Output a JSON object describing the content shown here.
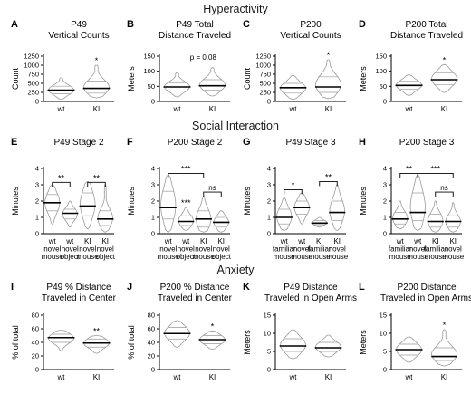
{
  "sections": [
    "Hyperactivity",
    "Social Interaction",
    "Anxiety"
  ],
  "chart_data": [
    {
      "letter": "A",
      "type": "violin",
      "title": [
        "P49",
        "Vertical Counts"
      ],
      "ylabel": "Count",
      "ylim": [
        0,
        1250
      ],
      "yticks": [
        0,
        250,
        500,
        750,
        1000,
        1250
      ],
      "categories": [
        [
          "wt"
        ],
        [
          "KI"
        ]
      ],
      "series": [
        {
          "name": "wt",
          "median": 310,
          "min": 60,
          "max": 650,
          "q1": 210,
          "q3": 420
        },
        {
          "name": "KI",
          "median": 360,
          "min": 100,
          "max": 1000,
          "q1": 230,
          "q3": 560
        }
      ],
      "annotations": [
        {
          "type": "star",
          "group": 1,
          "label": "*"
        }
      ]
    },
    {
      "letter": "B",
      "type": "violin",
      "title": [
        "P49 Total",
        "Distance Traveled"
      ],
      "ylabel": "Meters",
      "ylim": [
        0,
        150
      ],
      "yticks": [
        0,
        50,
        100,
        150
      ],
      "categories": [
        [
          "wt"
        ],
        [
          "KI"
        ]
      ],
      "series": [
        {
          "name": "wt",
          "median": 48,
          "min": 15,
          "max": 95,
          "q1": 35,
          "q3": 62
        },
        {
          "name": "KI",
          "median": 52,
          "min": 18,
          "max": 112,
          "q1": 38,
          "q3": 72
        }
      ],
      "annotations": [
        {
          "type": "text",
          "label": "p = 0.08"
        }
      ]
    },
    {
      "letter": "C",
      "type": "violin",
      "title": [
        "P200",
        "Vertical Counts"
      ],
      "ylabel": "Count",
      "ylim": [
        0,
        1250
      ],
      "yticks": [
        0,
        250,
        500,
        750,
        1000,
        1250
      ],
      "categories": [
        [
          "wt"
        ],
        [
          "KI"
        ]
      ],
      "series": [
        {
          "name": "wt",
          "median": 380,
          "min": 60,
          "max": 720,
          "q1": 230,
          "q3": 500
        },
        {
          "name": "KI",
          "median": 400,
          "min": 80,
          "max": 1150,
          "q1": 250,
          "q3": 680
        }
      ],
      "annotations": [
        {
          "type": "star",
          "group": 1,
          "label": "*"
        }
      ]
    },
    {
      "letter": "D",
      "type": "violin",
      "title": [
        "P200 Total",
        "Distance Traveled"
      ],
      "ylabel": "Meters",
      "ylim": [
        0,
        150
      ],
      "yticks": [
        0,
        50,
        100,
        150
      ],
      "categories": [
        [
          "wt"
        ],
        [
          "KI"
        ]
      ],
      "series": [
        {
          "name": "wt",
          "median": 53,
          "min": 20,
          "max": 88,
          "q1": 40,
          "q3": 68
        },
        {
          "name": "KI",
          "median": 72,
          "min": 30,
          "max": 122,
          "q1": 55,
          "q3": 95
        }
      ],
      "annotations": [
        {
          "type": "star",
          "group": 1,
          "label": "*"
        }
      ]
    },
    {
      "letter": "E",
      "type": "violin",
      "title": [
        "P49 Stage 2"
      ],
      "ylabel": "Minutes",
      "ylim": [
        0,
        4
      ],
      "yticks": [
        0,
        1,
        2,
        3,
        4
      ],
      "categories": [
        [
          "wt",
          "novel",
          "mouse"
        ],
        [
          "wt",
          "novel",
          "object"
        ],
        [
          "KI",
          "novel",
          "mouse"
        ],
        [
          "KI",
          "novel",
          "object"
        ]
      ],
      "series": [
        {
          "name": "wt novel mouse",
          "median": 1.9,
          "min": 0.6,
          "max": 3.0,
          "q1": 1.4,
          "q3": 2.4
        },
        {
          "name": "wt novel object",
          "median": 1.25,
          "min": 0.4,
          "max": 2.0,
          "q1": 0.9,
          "q3": 1.5
        },
        {
          "name": "KI novel mouse",
          "median": 1.7,
          "min": 0.3,
          "max": 3.2,
          "q1": 1.1,
          "q3": 2.5
        },
        {
          "name": "KI novel object",
          "median": 0.9,
          "min": 0.1,
          "max": 3.0,
          "q1": 0.5,
          "q3": 1.4
        }
      ],
      "annotations": [
        {
          "type": "bracket",
          "from": 0,
          "to": 1,
          "level": 3.15,
          "label": "**"
        },
        {
          "type": "bracket",
          "from": 2,
          "to": 3,
          "level": 3.15,
          "label": "**"
        }
      ]
    },
    {
      "letter": "F",
      "type": "violin",
      "title": [
        "P200 Stage 2"
      ],
      "ylabel": "Minutes",
      "ylim": [
        0,
        4
      ],
      "yticks": [
        0,
        1,
        2,
        3,
        4
      ],
      "categories": [
        [
          "wt",
          "novel",
          "mouse"
        ],
        [
          "wt",
          "novel",
          "object"
        ],
        [
          "KI",
          "novel",
          "mouse"
        ],
        [
          "KI",
          "novel",
          "object"
        ]
      ],
      "series": [
        {
          "name": "wt novel mouse",
          "median": 1.6,
          "min": 0.1,
          "max": 3.6,
          "q1": 0.9,
          "q3": 2.6
        },
        {
          "name": "wt novel object",
          "median": 0.75,
          "min": 0.2,
          "max": 1.6,
          "q1": 0.5,
          "q3": 1.1
        },
        {
          "name": "KI novel mouse",
          "median": 0.9,
          "min": 0.1,
          "max": 2.3,
          "q1": 0.4,
          "q3": 1.4
        },
        {
          "name": "KI novel object",
          "median": 0.7,
          "min": 0.1,
          "max": 1.4,
          "q1": 0.4,
          "q3": 1.0
        }
      ],
      "annotations": [
        {
          "type": "bracket",
          "from": 0,
          "to": 2,
          "level": 3.7,
          "label": "***"
        },
        {
          "type": "bracket",
          "from": 2,
          "to": 3,
          "level": 2.55,
          "label": "ns"
        },
        {
          "type": "star",
          "group": 1,
          "label": "***"
        }
      ]
    },
    {
      "letter": "G",
      "type": "violin",
      "title": [
        "P49 Stage 3"
      ],
      "ylabel": "Minutes",
      "ylim": [
        0,
        4
      ],
      "yticks": [
        0,
        1,
        2,
        3,
        4
      ],
      "categories": [
        [
          "wt",
          "familiar",
          "mouse"
        ],
        [
          "wt",
          "novel",
          "mouse"
        ],
        [
          "KI",
          "familiar",
          "mouse"
        ],
        [
          "KI",
          "novel",
          "mouse"
        ]
      ],
      "series": [
        {
          "name": "wt familiar mouse",
          "median": 1.0,
          "min": 0.2,
          "max": 2.2,
          "q1": 0.6,
          "q3": 1.5
        },
        {
          "name": "wt novel mouse",
          "median": 1.6,
          "min": 0.6,
          "max": 2.5,
          "q1": 1.2,
          "q3": 2.0
        },
        {
          "name": "KI familiar mouse",
          "median": 0.65,
          "min": 0.4,
          "max": 1.0,
          "q1": 0.55,
          "q3": 0.8
        },
        {
          "name": "KI novel mouse",
          "median": 1.3,
          "min": 0.2,
          "max": 3.0,
          "q1": 0.8,
          "q3": 2.0
        }
      ],
      "annotations": [
        {
          "type": "bracket",
          "from": 0,
          "to": 1,
          "level": 2.7,
          "label": "*"
        },
        {
          "type": "bracket",
          "from": 2,
          "to": 3,
          "level": 3.2,
          "label": "**"
        }
      ]
    },
    {
      "letter": "H",
      "type": "violin",
      "title": [
        "P200 Stage 3"
      ],
      "ylabel": "Minutes",
      "ylim": [
        0,
        4
      ],
      "yticks": [
        0,
        1,
        2,
        3,
        4
      ],
      "categories": [
        [
          "wt",
          "familiar",
          "mouse"
        ],
        [
          "wt",
          "novel",
          "mouse"
        ],
        [
          "KI",
          "familiar",
          "mouse"
        ],
        [
          "KI",
          "novel",
          "mouse"
        ]
      ],
      "series": [
        {
          "name": "wt familiar mouse",
          "median": 0.9,
          "min": 0.3,
          "max": 2.0,
          "q1": 0.6,
          "q3": 1.3
        },
        {
          "name": "wt novel mouse",
          "median": 1.3,
          "min": 0.2,
          "max": 3.6,
          "q1": 0.8,
          "q3": 2.5
        },
        {
          "name": "KI familiar mouse",
          "median": 0.75,
          "min": 0.1,
          "max": 2.0,
          "q1": 0.4,
          "q3": 1.2
        },
        {
          "name": "KI novel mouse",
          "median": 0.75,
          "min": 0.1,
          "max": 1.9,
          "q1": 0.4,
          "q3": 1.1
        }
      ],
      "annotations": [
        {
          "type": "bracket",
          "from": 0,
          "to": 1,
          "level": 3.7,
          "label": "**"
        },
        {
          "type": "bracket",
          "from": 1,
          "to": 3,
          "level": 3.7,
          "label": "***"
        },
        {
          "type": "bracket",
          "from": 2,
          "to": 3,
          "level": 2.55,
          "label": "ns"
        }
      ]
    },
    {
      "letter": "I",
      "type": "violin",
      "title": [
        "P49 % Distance",
        "Traveled in Center"
      ],
      "ylabel": "% of total",
      "ylim": [
        0,
        80
      ],
      "yticks": [
        0,
        20,
        40,
        60,
        80
      ],
      "categories": [
        [
          "wt"
        ],
        [
          "KI"
        ]
      ],
      "series": [
        {
          "name": "wt",
          "median": 47,
          "min": 28,
          "max": 58,
          "q1": 40,
          "q3": 52
        },
        {
          "name": "KI",
          "median": 39,
          "min": 24,
          "max": 50,
          "q1": 33,
          "q3": 45
        }
      ],
      "annotations": [
        {
          "type": "star",
          "group": 1,
          "label": "**"
        }
      ]
    },
    {
      "letter": "J",
      "type": "violin",
      "title": [
        "P200 % Distance",
        "Traveled in Center"
      ],
      "ylabel": "% of total",
      "ylim": [
        0,
        80
      ],
      "yticks": [
        0,
        20,
        40,
        60,
        80
      ],
      "categories": [
        [
          "wt"
        ],
        [
          "KI"
        ]
      ],
      "series": [
        {
          "name": "wt",
          "median": 53,
          "min": 33,
          "max": 72,
          "q1": 45,
          "q3": 62
        },
        {
          "name": "KI",
          "median": 44,
          "min": 30,
          "max": 57,
          "q1": 38,
          "q3": 50
        }
      ],
      "annotations": [
        {
          "type": "star",
          "group": 1,
          "label": "*"
        }
      ]
    },
    {
      "letter": "K",
      "type": "violin",
      "title": [
        "P49 Distance",
        "Traveled in Open Arms"
      ],
      "ylabel": "Meters",
      "ylim": [
        0,
        15
      ],
      "yticks": [
        0,
        5,
        10,
        15
      ],
      "categories": [
        [
          "wt"
        ],
        [
          "KI"
        ]
      ],
      "series": [
        {
          "name": "wt",
          "median": 6.5,
          "min": 3,
          "max": 11,
          "q1": 5,
          "q3": 8.5
        },
        {
          "name": "KI",
          "median": 6.0,
          "min": 3.5,
          "max": 9.5,
          "q1": 5,
          "q3": 7.5
        }
      ],
      "annotations": []
    },
    {
      "letter": "L",
      "type": "violin",
      "title": [
        "P200 Distance",
        "Traveled in Open Arms"
      ],
      "ylabel": "Meters",
      "ylim": [
        0,
        15
      ],
      "yticks": [
        0,
        5,
        10,
        15
      ],
      "categories": [
        [
          "wt"
        ],
        [
          "KI"
        ]
      ],
      "series": [
        {
          "name": "wt",
          "median": 5.5,
          "min": 2,
          "max": 9,
          "q1": 4,
          "q3": 7
        },
        {
          "name": "KI",
          "median": 3.6,
          "min": 1,
          "max": 11,
          "q1": 2.5,
          "q3": 6
        }
      ],
      "annotations": [
        {
          "type": "star",
          "group": 1,
          "label": "*"
        }
      ]
    }
  ]
}
